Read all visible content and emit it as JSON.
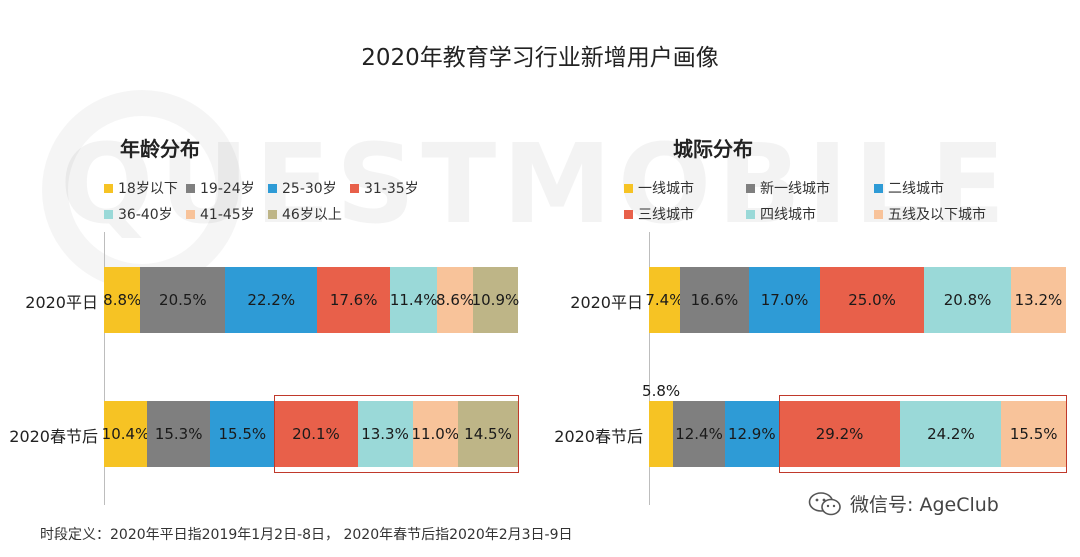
{
  "title": "2020年教育学习行业新增用户画像",
  "watermark": "QUESTMOBILE",
  "footnote": "时段定义：2020年平日指2019年1月2日-8日， 2020年春节后指2020年2月3日-9日",
  "wechat": {
    "label": "微信号: AgeClub",
    "icon": "wechat-icon"
  },
  "chart_data": [
    {
      "type": "bar",
      "orientation": "horizontal",
      "stacked": true,
      "normalized": true,
      "title": "年龄分布",
      "legend_position": "top",
      "categories": [
        "2020平日",
        "2020春节后"
      ],
      "series": [
        {
          "name": "18岁以下",
          "color": "#F6C324",
          "values": [
            8.8,
            10.4
          ],
          "labels": [
            "8.8%",
            "10.4%"
          ]
        },
        {
          "name": "19-24岁",
          "color": "#7F7F7F",
          "values": [
            20.5,
            15.3
          ],
          "labels": [
            "20.5%",
            "15.3%"
          ]
        },
        {
          "name": "25-30岁",
          "color": "#2E9BD6",
          "values": [
            22.2,
            15.5
          ],
          "labels": [
            "22.2%",
            "15.5%"
          ]
        },
        {
          "name": "31-35岁",
          "color": "#E8604A",
          "values": [
            17.6,
            20.1
          ],
          "labels": [
            "17.6%",
            "20.1%"
          ]
        },
        {
          "name": "36-40岁",
          "color": "#9AD9D8",
          "values": [
            11.4,
            13.3
          ],
          "labels": [
            "11.4%",
            "13.3%"
          ]
        },
        {
          "name": "41-45岁",
          "color": "#F8C39A",
          "values": [
            8.6,
            11.0
          ],
          "labels": [
            "8.6%",
            "11.0%"
          ]
        },
        {
          "name": "46岁以上",
          "color": "#BEB587",
          "values": [
            10.9,
            14.5
          ],
          "labels": [
            "10.9%",
            "14.5%"
          ]
        }
      ],
      "highlight": {
        "category": "2020春节后",
        "from_series": 3,
        "to_series": 6
      }
    },
    {
      "type": "bar",
      "orientation": "horizontal",
      "stacked": true,
      "normalized": true,
      "title": "城际分布",
      "legend_position": "top",
      "categories": [
        "2020平日",
        "2020春节后"
      ],
      "series": [
        {
          "name": "一线城市",
          "color": "#F6C324",
          "values": [
            7.4,
            5.8
          ],
          "labels": [
            "7.4%",
            "5.8%"
          ]
        },
        {
          "name": "新一线城市",
          "color": "#7F7F7F",
          "values": [
            16.6,
            12.4
          ],
          "labels": [
            "16.6%",
            "12.4%"
          ]
        },
        {
          "name": "二线城市",
          "color": "#2E9BD6",
          "values": [
            17.0,
            12.9
          ],
          "labels": [
            "17.0%",
            "12.9%"
          ]
        },
        {
          "name": "三线城市",
          "color": "#E8604A",
          "values": [
            25.0,
            29.2
          ],
          "labels": [
            "25.0%",
            "29.2%"
          ]
        },
        {
          "name": "四线城市",
          "color": "#9AD9D8",
          "values": [
            20.8,
            24.2
          ],
          "labels": [
            "20.8%",
            "24.2%"
          ]
        },
        {
          "name": "五线及以下城市",
          "color": "#F8C39A",
          "values": [
            13.2,
            15.5
          ],
          "labels": [
            "13.2%",
            "15.5%"
          ]
        }
      ],
      "highlight": {
        "category": "2020春节后",
        "from_series": 3,
        "to_series": 5
      }
    }
  ]
}
